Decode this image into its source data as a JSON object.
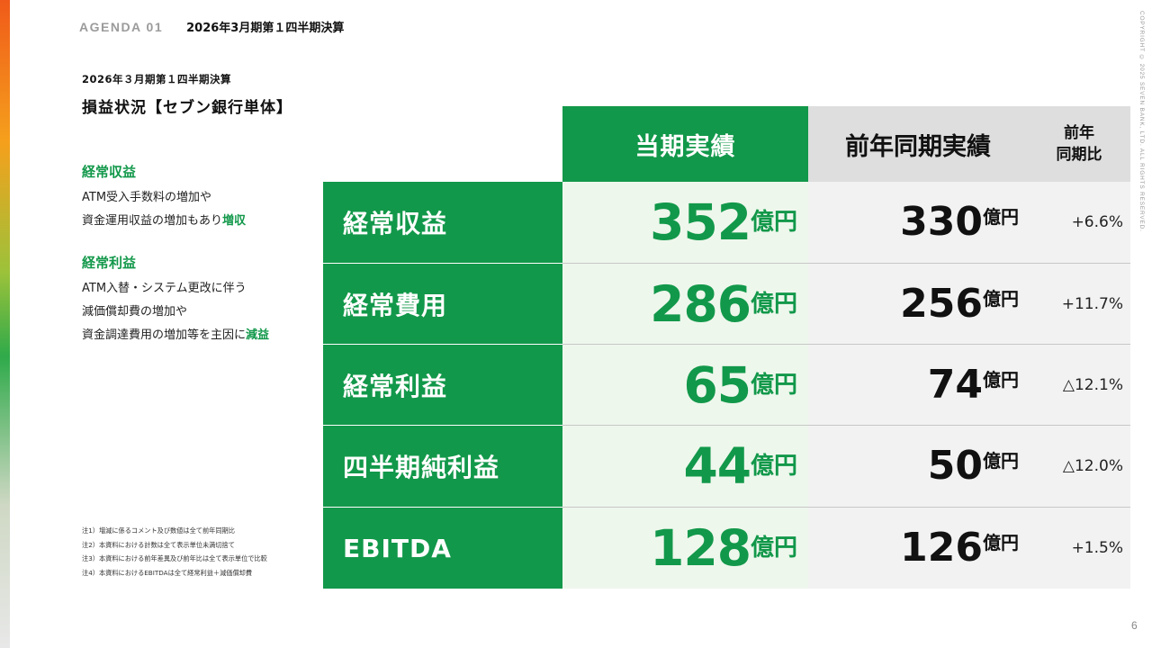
{
  "header": {
    "agenda": "AGENDA 01",
    "title": "2026年3月期第１四半期決算"
  },
  "subtitle": "2026年３月期第１四半期決算",
  "page_title": "損益状況【セブン銀行単体】",
  "notes": {
    "block1": {
      "heading": "経常収益",
      "line1": "ATM受入手数料の増加や",
      "line2_prefix": "資金運用収益の増加もあり",
      "line2_accent": "増収"
    },
    "block2": {
      "heading": "経常利益",
      "line1": "ATM入替・システム更改に伴う",
      "line2": "減価償却費の増加や",
      "line3_prefix": "資金調達費用の増加等を主因に",
      "line3_accent": "減益"
    }
  },
  "footnotes": [
    "注1）増減に係るコメント及び数値は全て前年同期比",
    "注2）本資料における計数は全て表示単位未満切捨て",
    "注3）本資料における前年差異及び前年比は全て表示単位で比較",
    "注4）本資料におけるEBITDAは全て経常利益＋減価償却費"
  ],
  "table": {
    "headers": {
      "current": "当期実績",
      "previous": "前年同期実績",
      "yoy_line1": "前年",
      "yoy_line2": "同期比"
    },
    "unit": "億円",
    "rows": [
      {
        "label": "経常収益",
        "current": "352",
        "previous": "330",
        "yoy": "+6.6%"
      },
      {
        "label": "経常費用",
        "current": "286",
        "previous": "256",
        "yoy": "+11.7%"
      },
      {
        "label": "経常利益",
        "current": "65",
        "previous": "74",
        "yoy": "△12.1%"
      },
      {
        "label": "四半期純利益",
        "current": "44",
        "previous": "50",
        "yoy": "△12.0%"
      },
      {
        "label": "EBITDA",
        "current": "128",
        "previous": "126",
        "yoy": "+1.5%"
      }
    ]
  },
  "copyright": "COPYRIGHT © 2025 SEVEN BANK, LTD. ALL RIGHTS RESERVED.",
  "page_number": "6",
  "colors": {
    "brand_green": "#12984a",
    "header_gray": "#dedede",
    "row_gray": "#f2f2f2",
    "cur_tint": "#eef7ec"
  }
}
